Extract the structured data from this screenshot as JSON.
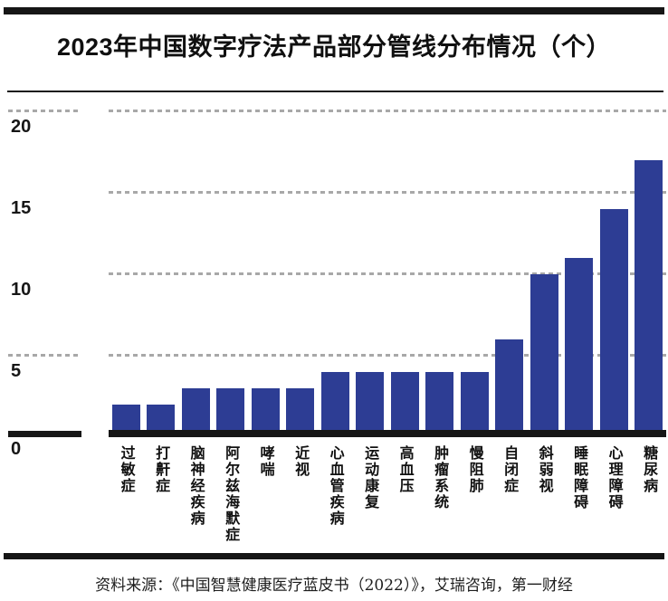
{
  "title": "2023年中国数字疗法产品部分管线分布情况（个）",
  "source": "资料来源：《中国智慧健康医疗蓝皮书（2022）》，艾瑞咨询，第一财经",
  "chart_data": {
    "type": "bar",
    "title": "2023年中国数字疗法产品部分管线分布情况（个）",
    "categories": [
      "过敏症",
      "打鼾症",
      "脑神经疾病",
      "阿尔兹海默症",
      "哮喘",
      "近视",
      "心血管疾病",
      "运动康复",
      "高血压",
      "肿瘤系统",
      "慢阻肺",
      "自闭症",
      "斜弱视",
      "睡眠障碍",
      "心理障碍",
      "糖尿病"
    ],
    "values": [
      2,
      2,
      3,
      3,
      3,
      3,
      4,
      4,
      4,
      4,
      4,
      6,
      10,
      11,
      14,
      17
    ],
    "xlabel": "",
    "ylabel": "",
    "ylim": [
      0,
      20
    ],
    "yticks": [
      0,
      5,
      10,
      15,
      20
    ],
    "grid": "horizontal-dashed",
    "left_dash_ticks": [
      20,
      5
    ],
    "legend": "none",
    "bar_color": "#2d3d94",
    "gridline_color": "#a8a8a8",
    "axis_color": "#161616"
  }
}
